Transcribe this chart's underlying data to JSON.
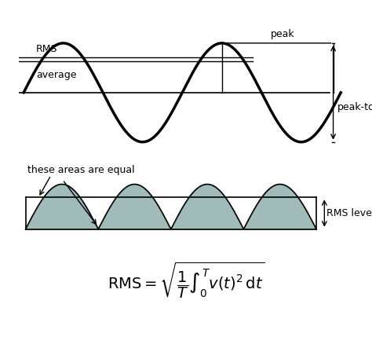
{
  "bg_color": "#ffffff",
  "sine_color": "#000000",
  "sine_linewidth": 2.5,
  "zero_line_color": "#000000",
  "zero_line_lw": 1.2,
  "rms_line_color": "#000000",
  "avg_line_color": "#000000",
  "shaded_color": "#7a9e9e",
  "shaded_alpha": 0.7,
  "rms_label": "RMS",
  "avg_label": "average",
  "peak_label": "peak",
  "peak_to_peak_label": "peak-to-peak",
  "areas_label": "these areas are equal",
  "rms_level_label": "RMS level",
  "formula": "RMS = \\sqrt{\\frac{1}{T}\\int_0^T v(t)^2\\,\\mathrm{d}t}",
  "amplitude": 1.0,
  "rms_value": 0.707,
  "avg_value": 0.637
}
